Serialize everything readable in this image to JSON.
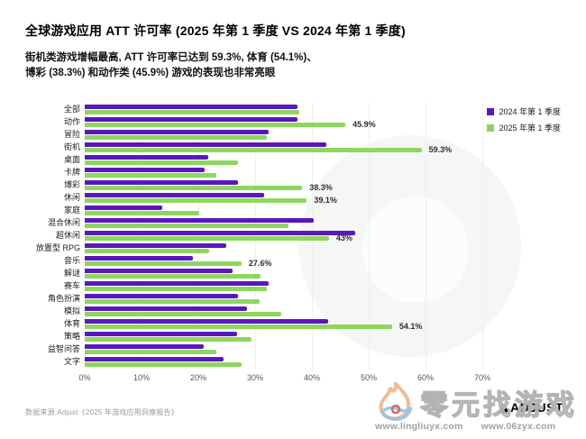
{
  "header": {
    "title": "全球游戏应用 ATT 许可率 (2025 年第 1 季度 VS 2024 年第 1 季度)",
    "subtitle_line1": "街机类游戏增幅最高, ATT 许可率已达到 59.3%, 体育 (54.1%)、",
    "subtitle_line2": "博彩 (38.3%) 和动作类 (45.9%) 游戏的表现也非常亮眼"
  },
  "legend": [
    {
      "label": "2024 年第 1 季度",
      "color": "#5917BD"
    },
    {
      "label": "2025 年第 1 季度",
      "color": "#8DD75F"
    }
  ],
  "chart_data": {
    "type": "bar",
    "orientation": "horizontal",
    "title": "全球游戏应用 ATT 许可率 (2025 年第 1 季度 VS 2024 年第 1 季度)",
    "xlim": [
      0,
      70
    ],
    "xticks": [
      "0%",
      "10%",
      "20%",
      "30%",
      "40%",
      "50%",
      "60%",
      "70%"
    ],
    "grid": "vertical-faint",
    "legend_position": "top-right",
    "categories": [
      "全部",
      "动作",
      "冒险",
      "街机",
      "桌面",
      "卡牌",
      "博彩",
      "休闲",
      "家庭",
      "混合休闲",
      "超休闲",
      "放置型 RPG",
      "音乐",
      "解谜",
      "赛车",
      "角色扮演",
      "模拟",
      "体育",
      "策略",
      "益智问答",
      "文字"
    ],
    "series": [
      {
        "name": "2024 年第 1 季度",
        "color": "#5917BD",
        "values": [
          37.4,
          37.4,
          32.3,
          42.5,
          21.8,
          21.1,
          27.0,
          31.5,
          13.7,
          40.3,
          47.6,
          24.9,
          19.1,
          26.1,
          32.3,
          27.0,
          28.5,
          42.9,
          26.8,
          21.0,
          24.4
        ],
        "value_labels": [
          null,
          null,
          null,
          null,
          null,
          null,
          null,
          null,
          null,
          null,
          null,
          null,
          null,
          null,
          null,
          null,
          null,
          null,
          null,
          null,
          null
        ]
      },
      {
        "name": "2025 年第 1 季度",
        "color": "#8DD75F",
        "values": [
          37.8,
          45.9,
          32.1,
          59.3,
          26.9,
          23.1,
          38.3,
          39.1,
          20.1,
          35.8,
          43.0,
          21.9,
          27.6,
          30.9,
          32.1,
          30.8,
          34.6,
          54.1,
          29.3,
          23.2,
          27.6
        ],
        "value_labels": [
          null,
          "45.9%",
          null,
          "59.3%",
          null,
          null,
          "38.3%",
          "39.1%",
          null,
          null,
          "43%",
          null,
          "27.6%",
          null,
          null,
          null,
          null,
          "54.1%",
          null,
          null,
          null
        ]
      }
    ]
  },
  "footer": {
    "source": "数据来源:Adjust《2025 年游戏应用洞察报告》",
    "brand": "ADJUST"
  },
  "watermark": {
    "text": "零元找游戏",
    "urls": [
      "www.lingliuyx.com",
      "www.06zyx.com"
    ]
  }
}
